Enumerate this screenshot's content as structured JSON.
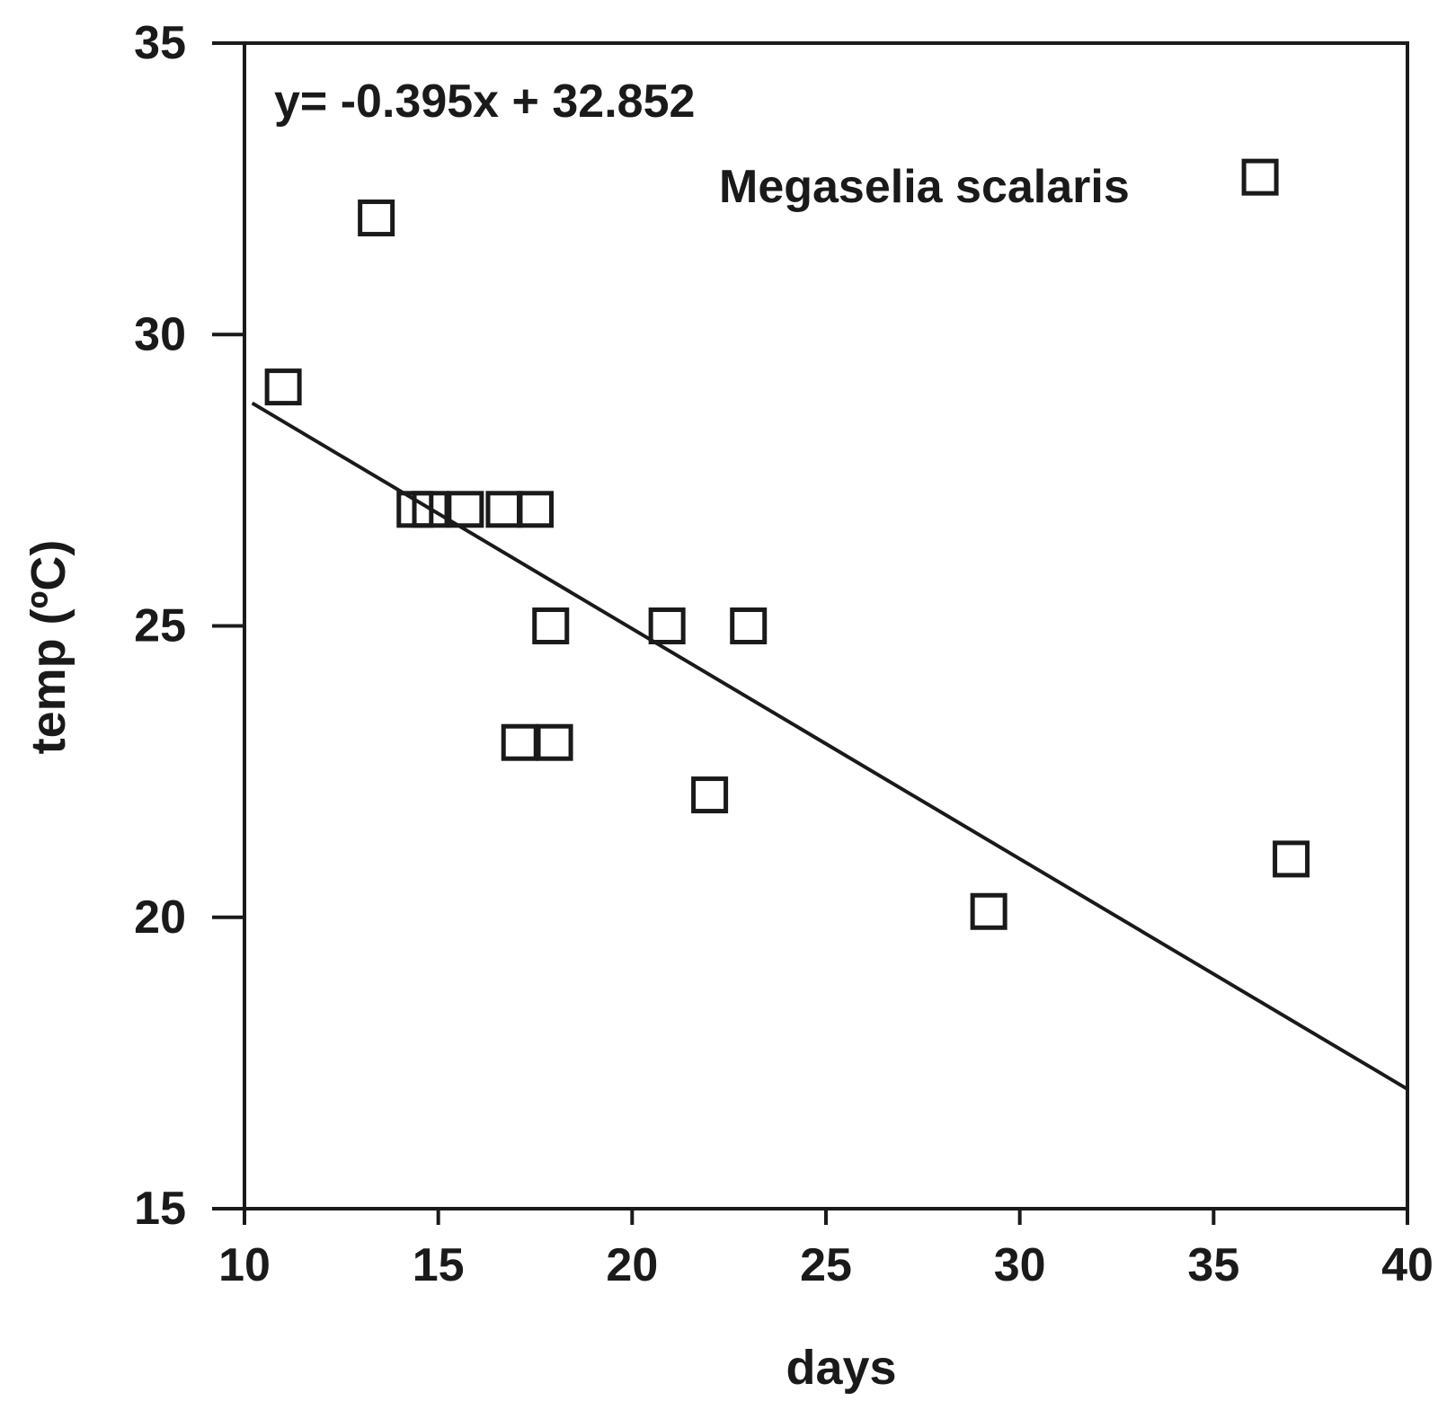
{
  "chart_data": {
    "type": "scatter",
    "title": "",
    "xlabel": "days",
    "ylabel": "temp (ºC)",
    "xlim": [
      10,
      40
    ],
    "ylim": [
      15,
      35
    ],
    "x_ticks": [
      "10",
      "15",
      "20",
      "25",
      "30",
      "35",
      "40"
    ],
    "y_ticks": [
      "15",
      "20",
      "25",
      "30",
      "35"
    ],
    "grid": false,
    "legend": null,
    "series": [
      {
        "marker": "open-square",
        "points": [
          {
            "x": 11.0,
            "y": 29.1
          },
          {
            "x": 13.4,
            "y": 32.0
          },
          {
            "x": 14.4,
            "y": 27.0
          },
          {
            "x": 14.8,
            "y": 27.0
          },
          {
            "x": 15.7,
            "y": 27.0
          },
          {
            "x": 16.7,
            "y": 27.0
          },
          {
            "x": 17.5,
            "y": 27.0
          },
          {
            "x": 17.9,
            "y": 25.0
          },
          {
            "x": 20.9,
            "y": 25.0
          },
          {
            "x": 23.0,
            "y": 25.0
          },
          {
            "x": 17.1,
            "y": 23.0
          },
          {
            "x": 18.0,
            "y": 23.0
          },
          {
            "x": 22.0,
            "y": 22.1
          },
          {
            "x": 29.2,
            "y": 20.1
          },
          {
            "x": 37.0,
            "y": 21.0
          },
          {
            "x": 36.2,
            "y": 32.7
          }
        ]
      }
    ],
    "trendline": {
      "slope": -0.395,
      "intercept": 32.852,
      "x_range": [
        10.2,
        40
      ]
    },
    "annotations": {
      "equation": "y= -0.395x + 32.852",
      "species": "Megaselia scalaris"
    },
    "colors": {
      "ink": "#1a1a1a",
      "background": "#ffffff"
    }
  }
}
